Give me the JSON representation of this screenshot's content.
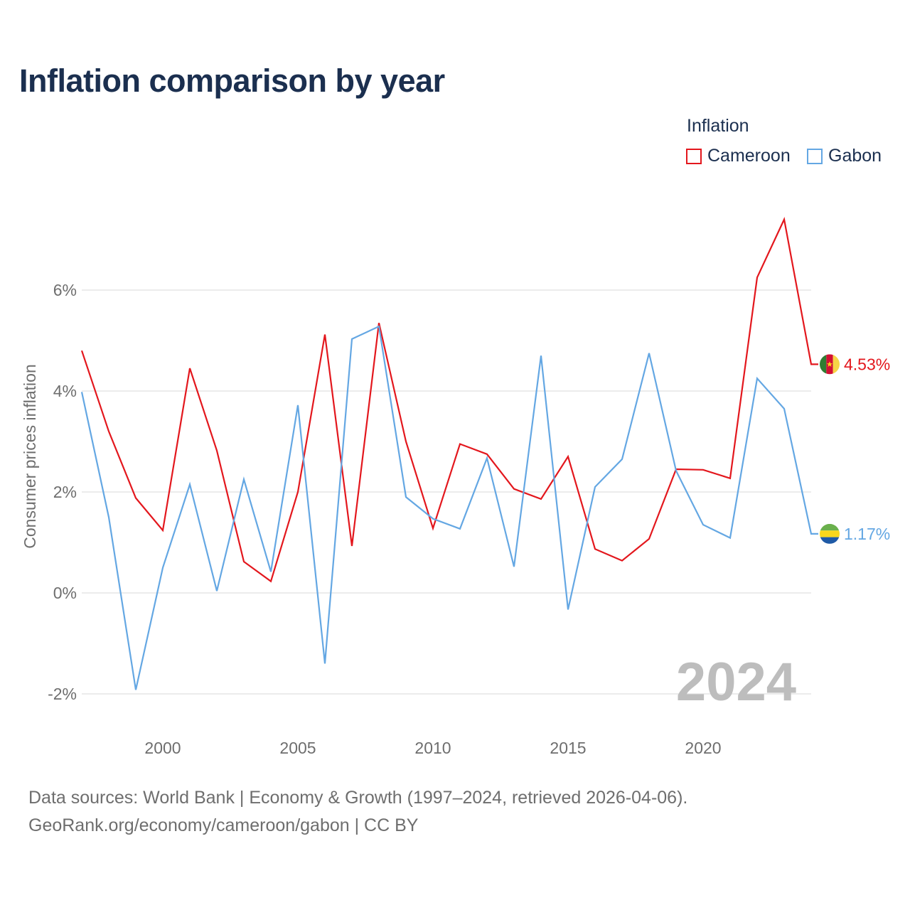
{
  "title": "Inflation comparison by year",
  "legend": {
    "title": "Inflation",
    "items": [
      {
        "label": "Cameroon",
        "color": "#e3171d"
      },
      {
        "label": "Gabon",
        "color": "#64a7e3"
      }
    ]
  },
  "footer": {
    "line1": "Data sources: World Bank | Economy & Growth (1997–2024, retrieved 2026-04-06).",
    "line2": "GeoRank.org/economy/cameroon/gabon | CC BY"
  },
  "chart_data": {
    "type": "line",
    "title": "Inflation comparison by year",
    "xlabel": "",
    "ylabel": "Consumer prices inflation",
    "xlim": [
      1997,
      2024
    ],
    "ylim": [
      -2.6,
      7.6
    ],
    "x_ticks": [
      2000,
      2005,
      2010,
      2015,
      2020
    ],
    "y_ticks": [
      {
        "value": -2,
        "label": "-2%"
      },
      {
        "value": 0,
        "label": "0%"
      },
      {
        "value": 2,
        "label": "2%"
      },
      {
        "value": 4,
        "label": "4%"
      },
      {
        "value": 6,
        "label": "6%"
      }
    ],
    "grid": true,
    "year_watermark": "2024",
    "x": [
      1997,
      1998,
      1999,
      2000,
      2001,
      2002,
      2003,
      2004,
      2005,
      2006,
      2007,
      2008,
      2009,
      2010,
      2011,
      2012,
      2013,
      2014,
      2015,
      2016,
      2017,
      2018,
      2019,
      2020,
      2021,
      2022,
      2023,
      2024
    ],
    "series": [
      {
        "name": "Cameroon",
        "color": "#e3171d",
        "end_label": "4.53%",
        "values": [
          4.8,
          3.2,
          1.88,
          1.24,
          4.45,
          2.82,
          0.62,
          0.23,
          2.0,
          5.12,
          0.93,
          5.35,
          3.0,
          1.28,
          2.95,
          2.75,
          2.06,
          1.86,
          2.7,
          0.87,
          0.64,
          1.07,
          2.45,
          2.44,
          2.27,
          6.25,
          7.4,
          4.53
        ]
      },
      {
        "name": "Gabon",
        "color": "#64a7e3",
        "end_label": "1.17%",
        "values": [
          3.98,
          1.5,
          -1.92,
          0.5,
          2.15,
          0.04,
          2.25,
          0.42,
          3.72,
          -1.4,
          5.03,
          5.28,
          1.9,
          1.47,
          1.27,
          2.67,
          0.52,
          4.7,
          -0.33,
          2.1,
          2.65,
          4.75,
          2.42,
          1.35,
          1.09,
          4.25,
          3.65,
          1.17
        ]
      }
    ]
  }
}
